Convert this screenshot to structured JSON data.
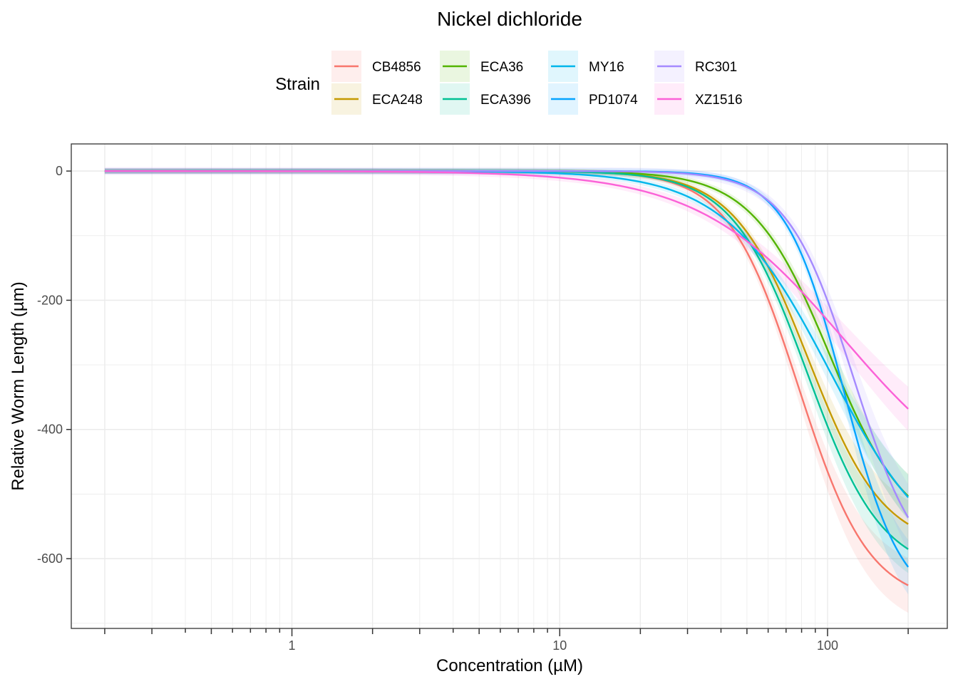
{
  "chart_data": {
    "type": "line",
    "title": "Nickel dichloride",
    "xlabel": "Concentration (µM)",
    "ylabel": "Relative Worm Length (µm)",
    "x_scale": "log10",
    "xlim": [
      0.15,
      280
    ],
    "ylim": [
      -708,
      42
    ],
    "x_ticks": [
      1,
      10,
      100
    ],
    "x_tick_labels": [
      "1",
      "10",
      "100"
    ],
    "y_ticks": [
      0,
      -200,
      -400,
      -600
    ],
    "y_tick_labels": [
      "0",
      "-200",
      "-400",
      "-600"
    ],
    "legend": {
      "title": "Strain",
      "placement": "top"
    },
    "x_range": [
      0.2,
      200
    ],
    "series": [
      {
        "name": "CB4856",
        "color": "#F8766D",
        "ec50": 78,
        "hill": 3.3,
        "top": 0,
        "bottom": -670,
        "ci": 28
      },
      {
        "name": "ECA248",
        "color": "#C49A00",
        "ec50": 85,
        "hill": 3.1,
        "top": 0,
        "bottom": -585,
        "ci": 25
      },
      {
        "name": "ECA36",
        "color": "#53B400",
        "ec50": 102,
        "hill": 3.0,
        "top": 0,
        "bottom": -570,
        "ci": 25
      },
      {
        "name": "ECA396",
        "color": "#00C094",
        "ec50": 84,
        "hill": 3.1,
        "top": 0,
        "bottom": -625,
        "ci": 25
      },
      {
        "name": "MY16",
        "color": "#00B6EB",
        "ec50": 102,
        "hill": 2.2,
        "top": 0,
        "bottom": -620,
        "ci": 28
      },
      {
        "name": "PD1074",
        "color": "#06A4FF",
        "ec50": 115,
        "hill": 4.0,
        "top": 0,
        "bottom": -680,
        "ci": 30
      },
      {
        "name": "RC301",
        "color": "#A58AFF",
        "ec50": 125,
        "hill": 3.5,
        "top": 0,
        "bottom": -640,
        "ci": 40
      },
      {
        "name": "XZ1516",
        "color": "#FB61D7",
        "ec50": 115,
        "hill": 1.6,
        "top": 0,
        "bottom": -520,
        "ci": 32
      }
    ]
  }
}
